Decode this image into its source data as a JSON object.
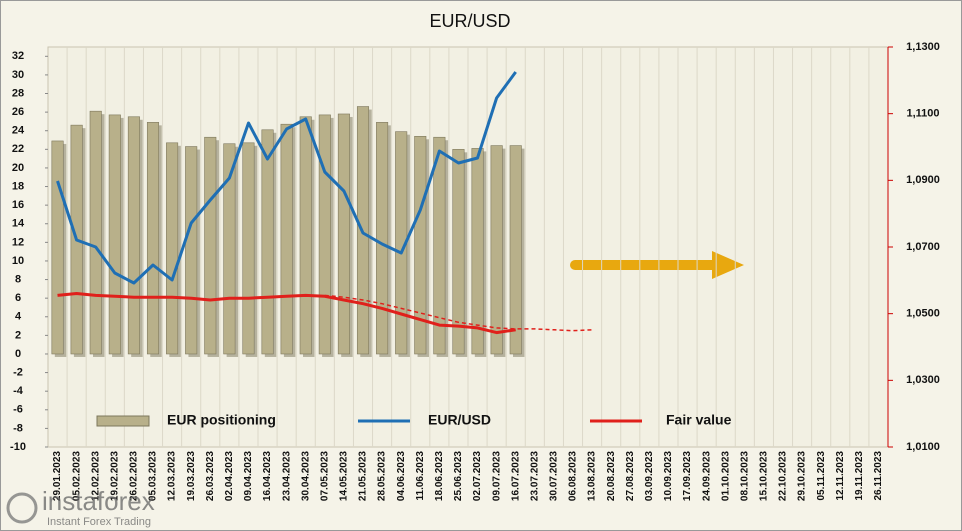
{
  "chart_data": {
    "type": "combo",
    "title": "EUR/USD",
    "categories": [
      "29.01.2023",
      "05.02.2023",
      "12.02.2023",
      "19.02.2023",
      "26.02.2023",
      "05.03.2023",
      "12.03.2023",
      "19.03.2023",
      "26.03.2023",
      "02.04.2023",
      "09.04.2023",
      "16.04.2023",
      "23.04.2023",
      "30.04.2023",
      "07.05.2023",
      "14.05.2023",
      "21.05.2023",
      "28.05.2023",
      "04.06.2023",
      "11.06.2023",
      "18.06.2023",
      "25.06.2023",
      "02.07.2023",
      "09.07.2023",
      "16.07.2023",
      "23.07.2023",
      "30.07.2023",
      "06.08.2023",
      "13.08.2023",
      "20.08.2023",
      "27.08.2023",
      "03.09.2023",
      "10.09.2023",
      "17.09.2023",
      "24.09.2023",
      "01.10.2023",
      "08.10.2023",
      "15.10.2023",
      "22.10.2023",
      "29.10.2023",
      "05.11.2023",
      "12.11.2023",
      "19.11.2023",
      "26.11.2023"
    ],
    "series": [
      {
        "name": "EUR positioning",
        "kind": "bar",
        "color": "#b8b08a",
        "values": [
          22.9,
          24.6,
          26.1,
          25.7,
          25.5,
          24.9,
          22.7,
          22.3,
          23.3,
          22.6,
          22.7,
          24.1,
          24.7,
          25.5,
          25.7,
          25.8,
          26.6,
          24.9,
          23.9,
          23.4,
          23.3,
          22.0,
          22.1,
          22.4,
          22.4,
          null,
          null,
          null,
          null,
          null,
          null,
          null,
          null,
          null,
          null,
          null,
          null,
          null,
          null,
          null,
          null,
          null,
          null,
          null
        ]
      },
      {
        "name": "EUR/USD",
        "kind": "line",
        "axis": "y2",
        "color": "#1f6fb4",
        "values": [
          1.0898,
          1.0721,
          1.07,
          1.0622,
          1.0592,
          1.0646,
          1.0601,
          1.0772,
          1.0841,
          1.0907,
          1.1072,
          1.0964,
          1.1054,
          1.1084,
          1.0925,
          1.0868,
          1.0742,
          1.0709,
          1.0682,
          1.0811,
          1.0988,
          1.0952,
          1.0967,
          1.1147,
          1.1225,
          null,
          null,
          null,
          null,
          null,
          null,
          null,
          null,
          null,
          null,
          null,
          null,
          null,
          null,
          null,
          null,
          null,
          null,
          null
        ]
      },
      {
        "name": "Fair value",
        "kind": "line",
        "color": "#e0201b",
        "values": [
          6.3,
          6.5,
          6.3,
          6.2,
          6.1,
          6.1,
          6.1,
          6.0,
          5.8,
          6.0,
          6.0,
          6.1,
          6.2,
          6.3,
          6.2,
          5.8,
          5.4,
          4.9,
          4.3,
          3.7,
          3.1,
          3.0,
          2.8,
          2.3,
          2.6,
          null,
          null,
          null,
          null,
          null,
          null,
          null,
          null,
          null,
          null,
          null,
          null,
          null,
          null,
          null,
          null,
          null,
          null,
          null
        ]
      },
      {
        "kind": "dashed",
        "color": "#e0201b",
        "values": [
          null,
          null,
          null,
          null,
          null,
          null,
          null,
          null,
          null,
          null,
          null,
          null,
          null,
          null,
          6.3,
          6.1,
          5.8,
          5.4,
          4.9,
          4.4,
          3.9,
          3.4,
          3.1,
          2.8,
          2.7,
          2.7,
          2.6,
          2.5,
          2.6,
          null,
          null,
          null,
          null,
          null,
          null,
          null,
          null,
          null,
          null,
          null,
          null,
          null,
          null,
          null
        ]
      }
    ],
    "ylim": [
      -10,
      33
    ],
    "yticks": [
      -10,
      -8,
      -6,
      -4,
      -2,
      0,
      2,
      4,
      6,
      8,
      10,
      12,
      14,
      16,
      18,
      20,
      22,
      24,
      26,
      28,
      30,
      32
    ],
    "y2lim": [
      1.01,
      1.13
    ],
    "y2ticks": [
      {
        "value": 1.01,
        "label": "1,0100"
      },
      {
        "value": 1.03,
        "label": "1,0300"
      },
      {
        "value": 1.05,
        "label": "1,0500"
      },
      {
        "value": 1.07,
        "label": "1,0700"
      },
      {
        "value": 1.09,
        "label": "1,0900"
      },
      {
        "value": 1.11,
        "label": "1,1100"
      },
      {
        "value": 1.13,
        "label": "1,1300"
      }
    ],
    "grid": true,
    "watermark": {
      "brand": "instaforex",
      "tagline": "Instant Forex Trading"
    }
  }
}
